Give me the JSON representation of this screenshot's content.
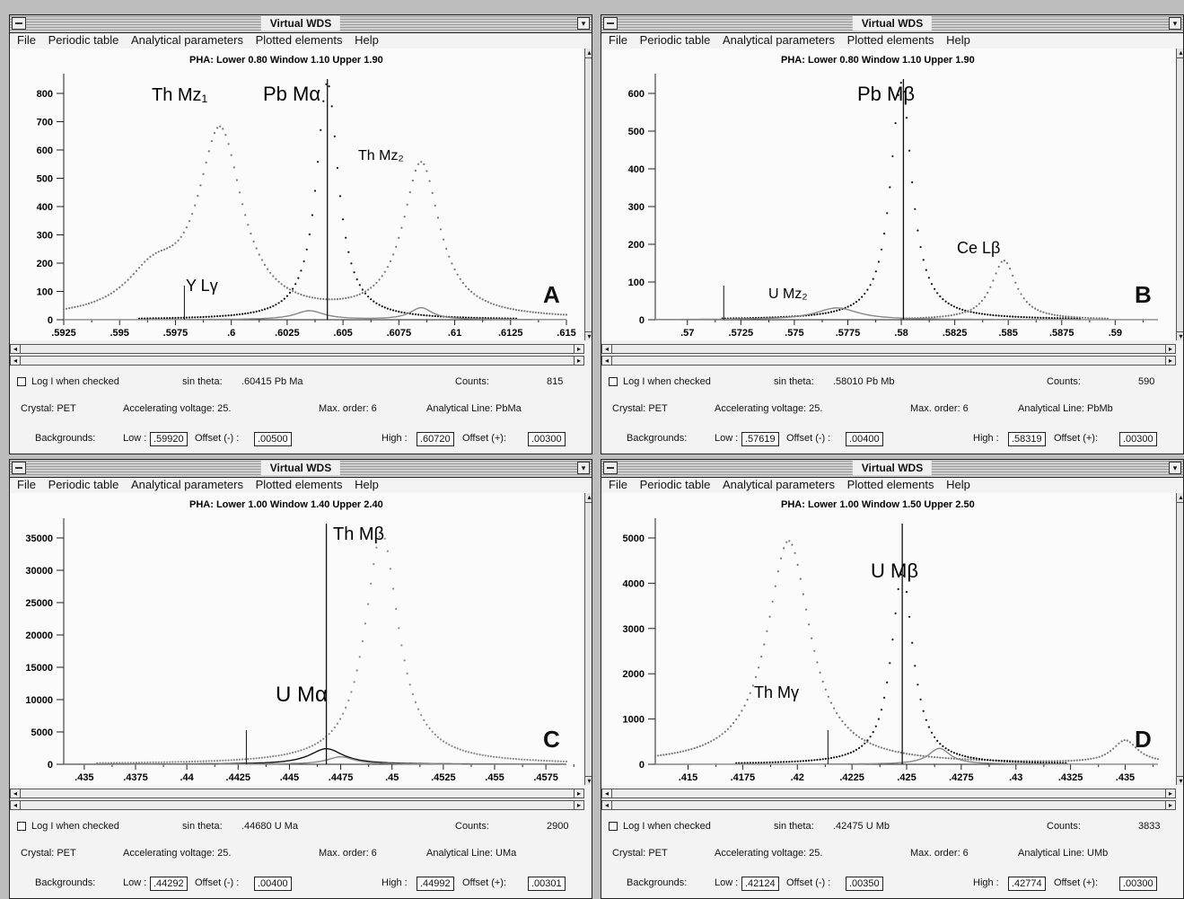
{
  "windows": [
    {
      "id": "A",
      "title": "Virtual WDS",
      "menu": [
        "File",
        "Periodic table",
        "Analytical parameters",
        "Plotted elements",
        "Help"
      ],
      "pha": "PHA: Lower 0.80   Window 1.10   Upper 1.90",
      "panel_letter": "A",
      "chart_data": {
        "type": "scatter",
        "y_ticks": [
          "800",
          "700",
          "600",
          "500",
          "400",
          "300",
          "200",
          "100",
          "0"
        ],
        "ylim": [
          0,
          800
        ],
        "x_ticks": [
          ".5925",
          ".595",
          ".5975",
          ".6",
          ".6025",
          ".605",
          ".6075",
          ".61",
          ".6125",
          ".615"
        ],
        "xlim": [
          0.5925,
          0.615
        ],
        "annotations": [
          "Th Mz₁",
          "Pb Mα",
          "Th Mz₂",
          "Y Lγ"
        ],
        "series": [
          {
            "peaks": [
              [
                0.5995,
                620,
                0.0012
              ],
              [
                0.6085,
                520,
                0.001
              ],
              [
                0.5965,
                130,
                0.0015
              ]
            ],
            "style": "dotted",
            "color": "#777"
          },
          {
            "peaks": [
              [
                0.6043,
                800,
                0.0006
              ]
            ],
            "style": "dotted",
            "color": "#111"
          },
          {
            "peaks": [
              [
                0.6035,
                30,
                0.0008
              ],
              [
                0.6085,
                40,
                0.0006
              ]
            ],
            "style": "line",
            "color": "#888"
          }
        ],
        "markers": [
          0.6043
        ],
        "smallmarkers": [
          0.5979
        ],
        "triangles": [
          0.5995,
          0.6072
        ]
      },
      "log_label": "Log I when checked",
      "sin_theta_label": "sin theta:",
      "sin_theta_value": ".60415 Pb Ma",
      "counts_label": "Counts:",
      "counts_value": "815",
      "crystal": "Crystal:  PET",
      "acc_voltage": "Accelerating voltage:  25.",
      "max_order": "Max. order:  6",
      "analytical_line": "Analytical Line:  PbMa",
      "backgrounds_label": "Backgrounds:",
      "low_label": "Low :",
      "low_value": ".59920",
      "offset_minus_label": "Offset (-) :",
      "offset_minus_value": ".00500",
      "high_label": "High :",
      "high_value": ".60720",
      "offset_plus_label": "Offset (+):",
      "offset_plus_value": ".00300"
    },
    {
      "id": "B",
      "title": "Virtual WDS",
      "menu": [
        "File",
        "Periodic table",
        "Analytical parameters",
        "Plotted elements",
        "Help"
      ],
      "pha": "PHA: Lower 0.80   Window 1.10   Upper 1.90",
      "panel_letter": "B",
      "chart_data": {
        "type": "scatter",
        "y_ticks": [
          "600",
          "500",
          "400",
          "300",
          "200",
          "100",
          "0"
        ],
        "ylim": [
          0,
          600
        ],
        "x_ticks": [
          ".57",
          ".5725",
          ".575",
          ".5775",
          ".58",
          ".5825",
          ".585",
          ".5875",
          ".59"
        ],
        "xlim": [
          0.5685,
          0.592
        ],
        "annotations": [
          "Pb Mβ",
          "Ce Lβ",
          "U Mz₂"
        ],
        "series": [
          {
            "peaks": [
              [
                0.58,
                600,
                0.0006
              ]
            ],
            "style": "dotted",
            "color": "#111"
          },
          {
            "peaks": [
              [
                0.5848,
                150,
                0.0007
              ]
            ],
            "style": "dotted",
            "color": "#777"
          },
          {
            "peaks": [
              [
                0.577,
                30,
                0.0012
              ]
            ],
            "style": "line",
            "color": "#888"
          }
        ],
        "markers": [
          0.5801
        ],
        "smallmarkers": [
          0.5717
        ],
        "triangles": [
          0.5755,
          0.583
        ]
      },
      "log_label": "Log I when checked",
      "sin_theta_label": "sin theta:",
      "sin_theta_value": ".58010 Pb Mb",
      "counts_label": "Counts:",
      "counts_value": "590",
      "crystal": "Crystal:  PET",
      "acc_voltage": "Accelerating voltage:  25.",
      "max_order": "Max. order:  6",
      "analytical_line": "Analytical Line:  PbMb",
      "backgrounds_label": "Backgrounds:",
      "low_label": "Low :",
      "low_value": ".57619",
      "offset_minus_label": "Offset (-) :",
      "offset_minus_value": ".00400",
      "high_label": "High :",
      "high_value": ".58319",
      "offset_plus_label": "Offset (+):",
      "offset_plus_value": ".00300"
    },
    {
      "id": "C",
      "title": "Virtual WDS",
      "menu": [
        "File",
        "Periodic table",
        "Analytical parameters",
        "Plotted elements",
        "Help"
      ],
      "pha": "PHA: Lower 1.00   Window 1.40   Upper 2.40",
      "panel_letter": "C",
      "chart_data": {
        "type": "scatter",
        "y_ticks": [
          "35000",
          "30000",
          "25000",
          "20000",
          "15000",
          "10000",
          "5000",
          "0"
        ],
        "ylim": [
          0,
          38000
        ],
        "x_ticks": [
          ".435",
          ".4375",
          ".44",
          ".4425",
          ".445",
          ".4475",
          ".45",
          ".4525",
          ".455",
          ".4575"
        ],
        "xlim": [
          0.434,
          0.4585
        ],
        "annotations": [
          "Th Mβ",
          "U Mα"
        ],
        "series": [
          {
            "peaks": [
              [
                0.4495,
                37000,
                0.001
              ]
            ],
            "style": "dotted",
            "color": "#888"
          },
          {
            "peaks": [
              [
                0.4468,
                2500,
                0.001
              ]
            ],
            "style": "line",
            "color": "#111"
          },
          {
            "peaks": [
              [
                0.4475,
                1200,
                0.0008
              ]
            ],
            "style": "line",
            "color": "#888"
          }
        ],
        "markers": [
          0.4468
        ],
        "smallmarkers": [
          0.4429
        ],
        "triangles": [
          0.443,
          0.45
        ]
      },
      "log_label": "Log I when checked",
      "sin_theta_label": "sin theta:",
      "sin_theta_value": ".44680 U Ma",
      "counts_label": "Counts:",
      "counts_value": "2900",
      "crystal": "Crystal:  PET",
      "acc_voltage": "Accelerating voltage:  25.",
      "max_order": "Max. order:  6",
      "analytical_line": "Analytical Line:  UMa",
      "backgrounds_label": "Backgrounds:",
      "low_label": "Low :",
      "low_value": ".44292",
      "offset_minus_label": "Offset (-) :",
      "offset_minus_value": ".00400",
      "high_label": "High :",
      "high_value": ".44992",
      "offset_plus_label": "Offset (+):",
      "offset_plus_value": ".00301"
    },
    {
      "id": "D",
      "title": "Virtual WDS",
      "menu": [
        "File",
        "Periodic table",
        "Analytical parameters",
        "Plotted elements",
        "Help"
      ],
      "pha": "PHA: Lower 1.00   Window 1.50   Upper 2.50",
      "panel_letter": "D",
      "chart_data": {
        "type": "scatter",
        "y_ticks": [
          "5000",
          "4000",
          "3000",
          "2000",
          "1000",
          "0"
        ],
        "ylim": [
          0,
          5200
        ],
        "x_ticks": [
          ".415",
          ".4175",
          ".42",
          ".4225",
          ".425",
          ".4275",
          ".43",
          ".4325",
          ".435"
        ],
        "xlim": [
          0.4135,
          0.4365
        ],
        "annotations": [
          "U Mβ",
          "Th Mγ"
        ],
        "series": [
          {
            "peaks": [
              [
                0.4196,
                4900,
                0.0012
              ],
              [
                0.435,
                500,
                0.0007
              ]
            ],
            "style": "dotted",
            "color": "#777"
          },
          {
            "peaks": [
              [
                0.4248,
                4200,
                0.0006
              ]
            ],
            "style": "dotted",
            "color": "#111"
          },
          {
            "peaks": [
              [
                0.4265,
                350,
                0.0006
              ]
            ],
            "style": "line",
            "color": "#888"
          }
        ],
        "markers": [
          0.4248
        ],
        "smallmarkers": [
          0.4214
        ],
        "triangles": [
          0.4214,
          0.428
        ]
      },
      "log_label": "Log I when checked",
      "sin_theta_label": "sin theta:",
      "sin_theta_value": ".42475 U Mb",
      "counts_label": "Counts:",
      "counts_value": "3833",
      "crystal": "Crystal:  PET",
      "acc_voltage": "Accelerating voltage:  25.",
      "max_order": "Max. order:  6",
      "analytical_line": "Analytical Line:  UMb",
      "backgrounds_label": "Backgrounds:",
      "low_label": "Low :",
      "low_value": ".42124",
      "offset_minus_label": "Offset (-) :",
      "offset_minus_value": ".00350",
      "high_label": "High :",
      "high_value": ".42774",
      "offset_plus_label": "Offset (+):",
      "offset_plus_value": ".00300"
    }
  ]
}
